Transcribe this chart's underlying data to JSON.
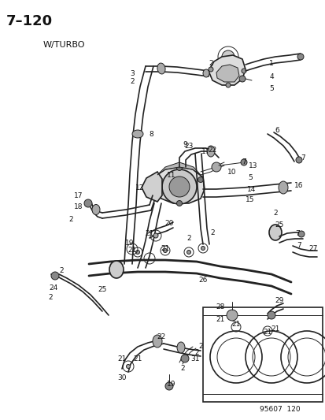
{
  "title": "7–120",
  "subtitle": "W/TURBO",
  "footer": "95607  120",
  "bg_color": "#ffffff",
  "line_color": "#222222",
  "text_color": "#111111",
  "fig_width": 4.14,
  "fig_height": 5.33,
  "dpi": 100
}
